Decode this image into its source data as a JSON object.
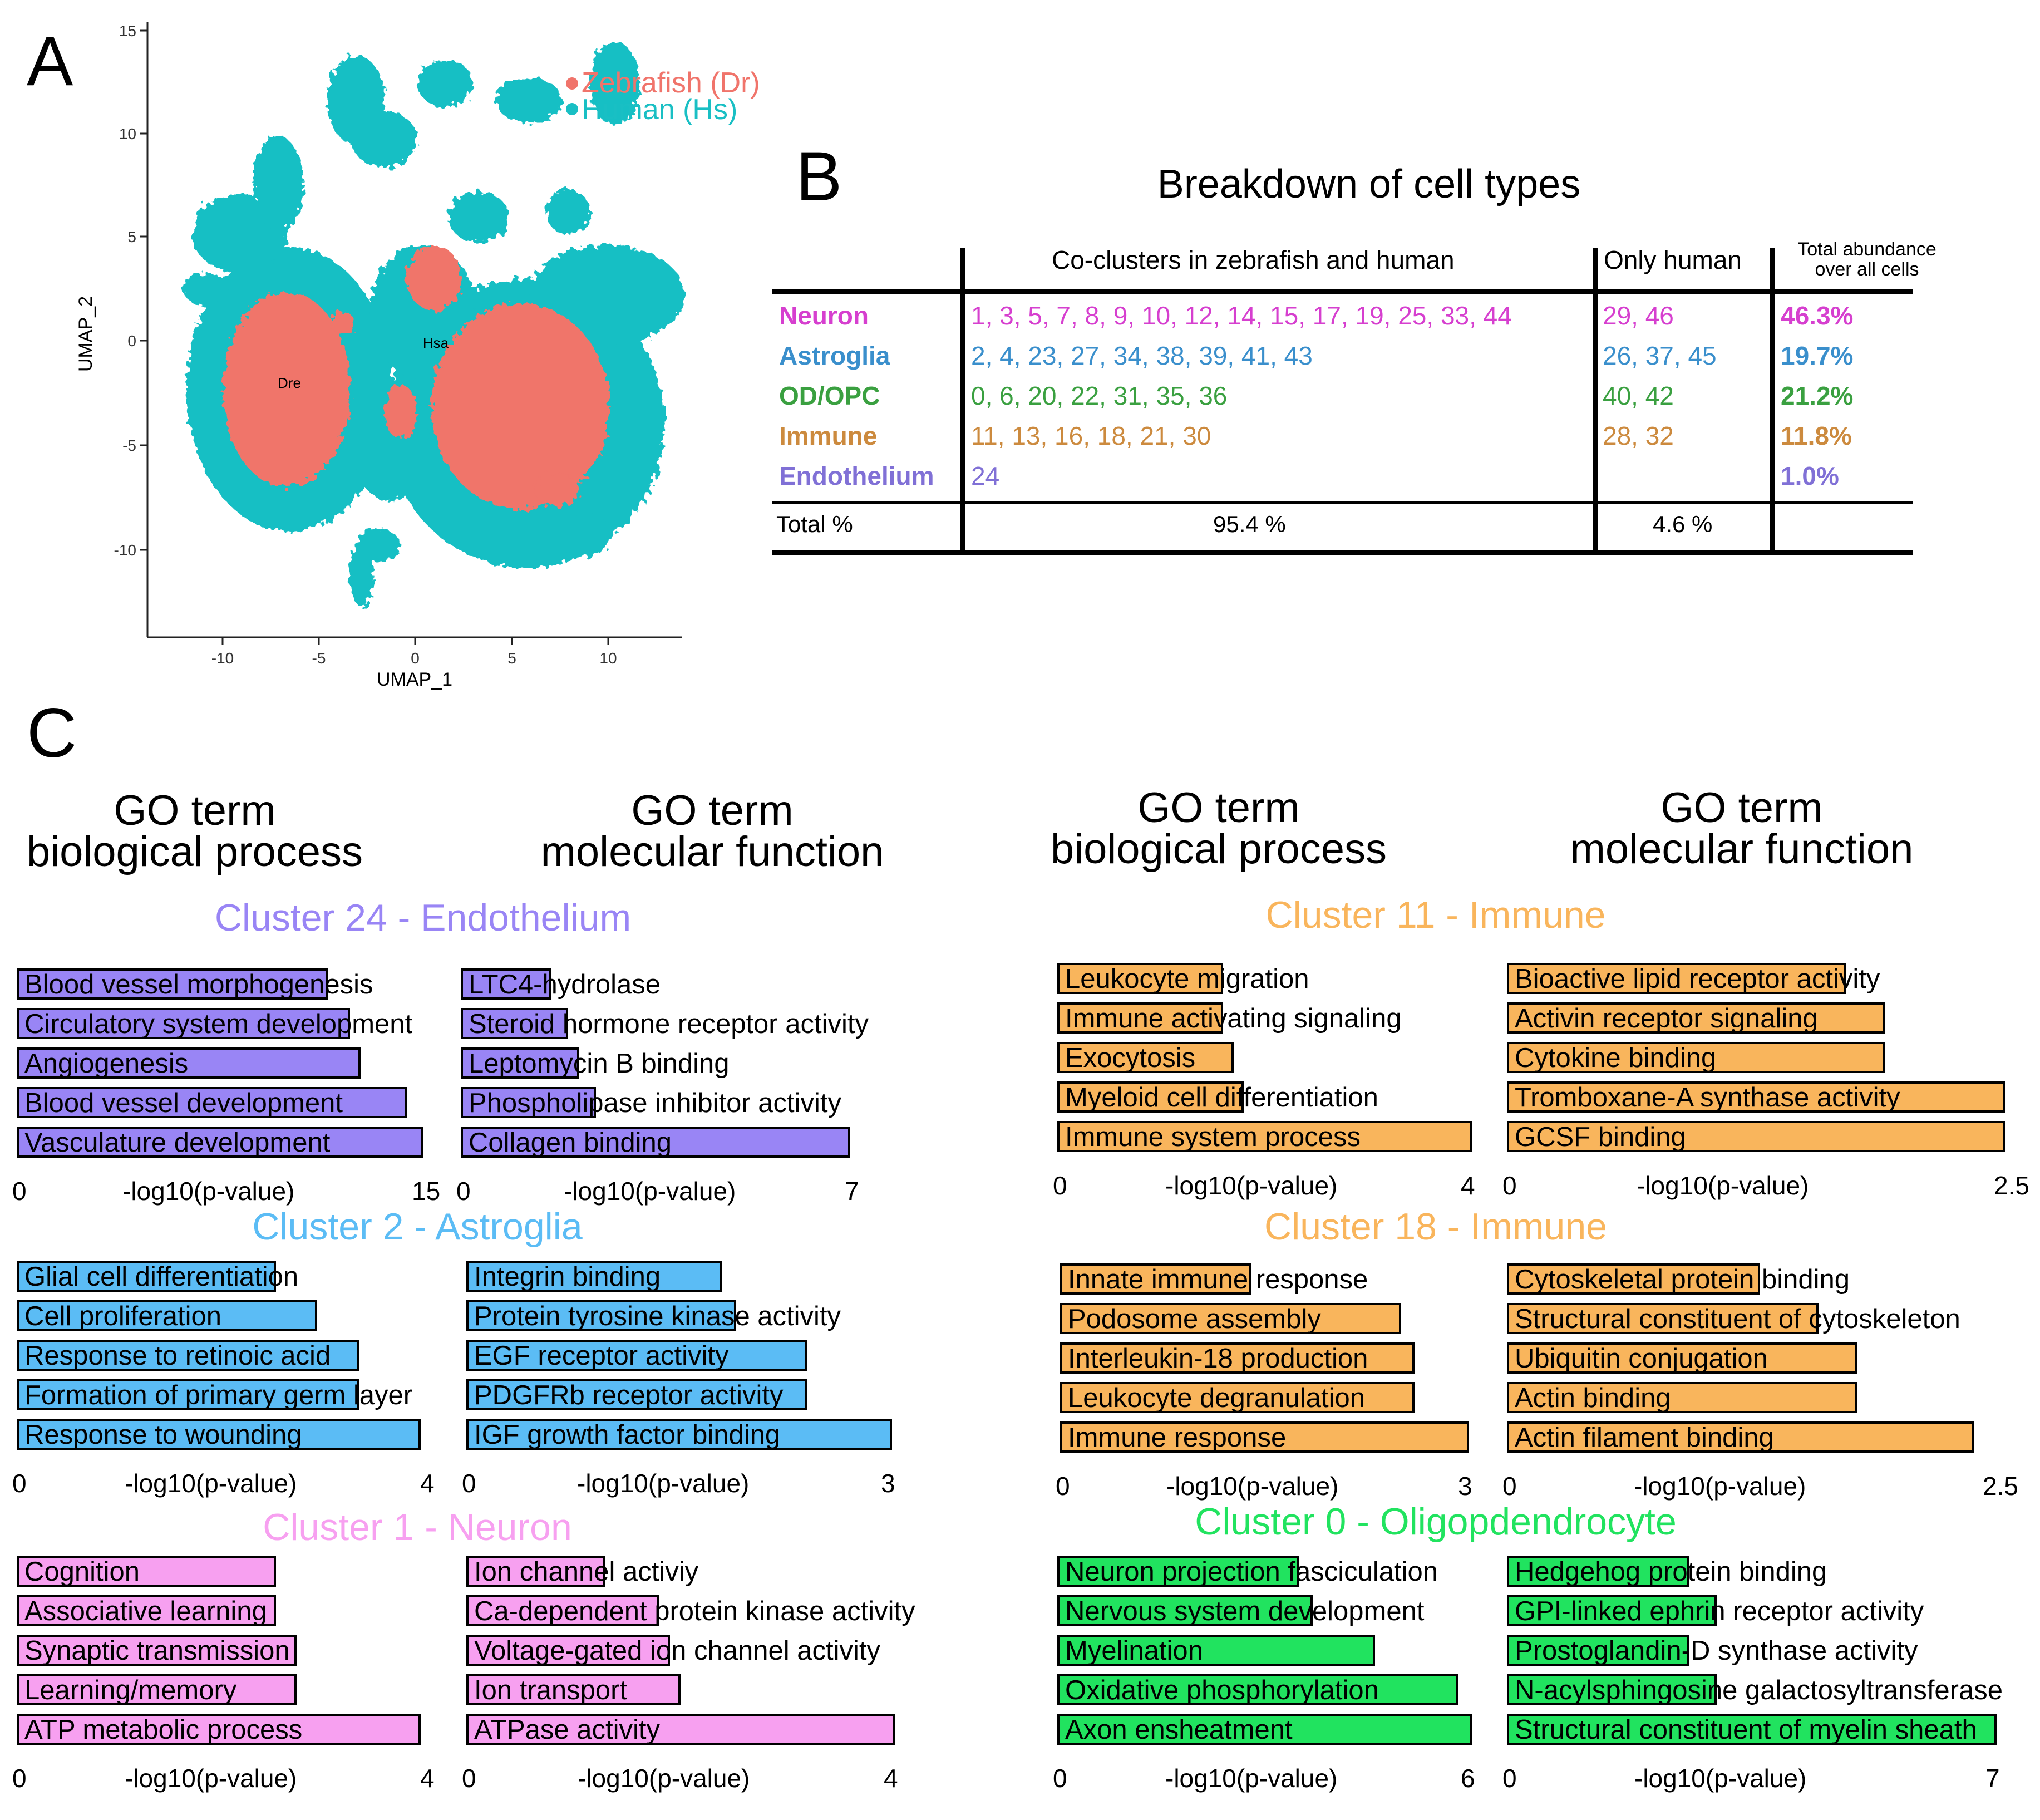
{
  "panel_labels": {
    "a": "A",
    "b": "B",
    "c": "C"
  },
  "umap": {
    "xlabel": "UMAP_1",
    "ylabel": "UMAP_2",
    "x_ticks": [
      "-10",
      "-5",
      "0",
      "5",
      "10"
    ],
    "y_ticks": [
      "15",
      "10",
      "5",
      "0",
      "-5",
      "-10"
    ],
    "legend": [
      {
        "label": "Zebrafish (Dr)",
        "color": "#f0746b"
      },
      {
        "label": "Human (Hs)",
        "color": "#19bfc4"
      }
    ],
    "annotations": [
      "Dre",
      "Hsa"
    ]
  },
  "table": {
    "title": "Breakdown of cell types",
    "headers": {
      "co": "Co-clusters in zebrafish and human",
      "only": "Only human",
      "abundance_line1": "Total abundance",
      "abundance_line2": "over all cells"
    },
    "rows": [
      {
        "type": "Neuron",
        "color": "#d63fcf",
        "co": "1, 3, 5, 7, 8, 9, 10, 12, 14, 15, 17, 19, 25, 33, 44",
        "human": "29, 46",
        "abundance": "46.3%"
      },
      {
        "type": "Astroglia",
        "color": "#3a8fcc",
        "co": "2, 4, 23, 27, 34, 38, 39, 41, 43",
        "human": "26, 37, 45",
        "abundance": "19.7%"
      },
      {
        "type": "OD/OPC",
        "color": "#3aa040",
        "co": "0, 6, 20, 22, 31, 35, 36",
        "human": "40, 42",
        "abundance": "21.2%"
      },
      {
        "type": "Immune",
        "color": "#cc8a3e",
        "co": "11, 13, 16, 18, 21, 30",
        "human": "28, 32",
        "abundance": "11.8%"
      },
      {
        "type": "Endothelium",
        "color": "#8070d6",
        "co": "24",
        "human": "",
        "abundance": "1.0%"
      }
    ],
    "total": {
      "label": "Total %",
      "co": "95.4 %",
      "human": "4.6 %"
    }
  },
  "go_headers": {
    "bp_left": [
      "GO term",
      "biological process"
    ],
    "mf_left": [
      "GO term",
      "molecular function"
    ],
    "bp_right": [
      "GO term",
      "biological process"
    ],
    "mf_right": [
      "GO term",
      "molecular function"
    ]
  },
  "axis_label": "-log10(p-value)",
  "chart_data": [
    {
      "cluster": "Cluster 24 - Endothelium",
      "panel": "biological process",
      "type": "bar",
      "color": "#9985f5",
      "xlim": [
        0,
        15
      ],
      "categories": [
        "Blood vessel morphogenesis",
        "Circulatory system development",
        "Angiogenesis",
        "Blood vessel development",
        "Vasculature development"
      ],
      "values": [
        11.5,
        12.3,
        12.7,
        14.4,
        15.0
      ]
    },
    {
      "cluster": "Cluster 24 - Endothelium",
      "panel": "molecular function",
      "type": "bar",
      "color": "#9985f5",
      "xlim": [
        0,
        7
      ],
      "categories": [
        "LTC4-hydrolase",
        "Steroid hormone receptor activity",
        "Leptomycin B binding",
        "Phospholipase inhibitor activity",
        "Collagen binding"
      ],
      "values": [
        1.6,
        1.9,
        2.1,
        2.4,
        6.9
      ]
    },
    {
      "cluster": "Cluster 2 - Astroglia",
      "panel": "biological process",
      "type": "bar",
      "color": "#5bbcf5",
      "xlim": [
        0,
        4
      ],
      "categories": [
        "Glial cell differentiation",
        "Cell proliferation",
        "Response to retinoic acid",
        "Formation of primary germ layer",
        "Response to wounding"
      ],
      "values": [
        2.5,
        2.9,
        3.3,
        3.3,
        3.9
      ]
    },
    {
      "cluster": "Cluster 2 - Astroglia",
      "panel": "molecular function",
      "type": "bar",
      "color": "#5bbcf5",
      "xlim": [
        0,
        3
      ],
      "categories": [
        "Integrin binding",
        "Protein tyrosine kinase activity",
        "EGF receptor activity",
        "PDGFRb receptor activity",
        "IGF growth factor binding"
      ],
      "values": [
        1.8,
        1.9,
        2.4,
        2.4,
        3.0
      ]
    },
    {
      "cluster": "Cluster 1 - Neuron",
      "panel": "biological process",
      "type": "bar",
      "color": "#f7a0f0",
      "xlim": [
        0,
        4
      ],
      "categories": [
        "Cognition",
        "Associative learning",
        "Synaptic transmission",
        "Learning/memory",
        "ATP metabolic process"
      ],
      "values": [
        2.5,
        2.5,
        2.7,
        2.7,
        3.9
      ]
    },
    {
      "cluster": "Cluster 1 - Neuron",
      "panel": "molecular function",
      "type": "bar",
      "color": "#f7a0f0",
      "xlim": [
        0,
        4
      ],
      "categories": [
        "Ion channel activiy",
        "Ca-dependent protein kinase activity",
        "Voltage-gated ion channel activity",
        "Ion transport",
        "ATPase activity"
      ],
      "values": [
        1.3,
        1.8,
        1.9,
        2.0,
        4.0
      ]
    },
    {
      "cluster": "Cluster 11 - Immune",
      "panel": "biological process",
      "type": "bar",
      "color": "#f9b55c",
      "xlim": [
        0,
        4
      ],
      "categories": [
        "Leukocyte migration",
        "Immune activating signaling",
        "Exocytosis",
        "Myeloid cell differentiation",
        "Immune system process"
      ],
      "values": [
        1.6,
        1.6,
        1.7,
        1.8,
        4.0
      ]
    },
    {
      "cluster": "Cluster 11 - Immune",
      "panel": "molecular function",
      "type": "bar",
      "color": "#f9b55c",
      "xlim": [
        0,
        2.5
      ],
      "categories": [
        "Bioactive lipid receptor activity",
        "Activin receptor signaling",
        "Cytokine binding",
        "Tromboxane-A synthase activity",
        "GCSF binding"
      ],
      "values": [
        1.7,
        1.9,
        1.9,
        2.5,
        2.5
      ]
    },
    {
      "cluster": "Cluster 18 - Immune",
      "panel": "biological process",
      "type": "bar",
      "color": "#f9b55c",
      "xlim": [
        0,
        3
      ],
      "categories": [
        "Innate immune response",
        "Podosome assembly",
        "Interleukin-18 production",
        "Leukocyte degranulation",
        "Immune response"
      ],
      "values": [
        1.4,
        2.5,
        2.6,
        2.6,
        3.0
      ]
    },
    {
      "cluster": "Cluster 18 - Immune",
      "panel": "molecular function",
      "type": "bar",
      "color": "#f9b55c",
      "xlim": [
        0,
        2.5
      ],
      "categories": [
        "Cytoskeletal protein binding",
        "Structural constituent of cytoskeleton",
        "Ubiquitin conjugation",
        "Actin binding",
        "Actin filament binding"
      ],
      "values": [
        1.3,
        1.6,
        1.8,
        1.8,
        2.4
      ]
    },
    {
      "cluster": "Cluster 0 - Oligopdendrocyte",
      "panel": "biological process",
      "type": "bar",
      "color": "#21e35f",
      "xlim": [
        0,
        6
      ],
      "categories": [
        "Neuron projection fasciculation",
        "Nervous system development",
        "Myelination",
        "Oxidative phosphorylation",
        "Axon ensheatment"
      ],
      "values": [
        3.5,
        3.7,
        4.6,
        5.8,
        6.0
      ]
    },
    {
      "cluster": "Cluster 0 - Oligopdendrocyte",
      "panel": "molecular function",
      "type": "bar",
      "color": "#21e35f",
      "xlim": [
        0,
        7
      ],
      "categories": [
        "Hedgehog protein binding",
        "GPI-linked ephrin receptor activity",
        "Prostoglandin-D synthase activity",
        "N-acylsphingosine galactosyltransferase",
        "Structural constituent of myelin sheath"
      ],
      "values": [
        2.6,
        3.0,
        2.6,
        3.0,
        7.0
      ]
    }
  ]
}
